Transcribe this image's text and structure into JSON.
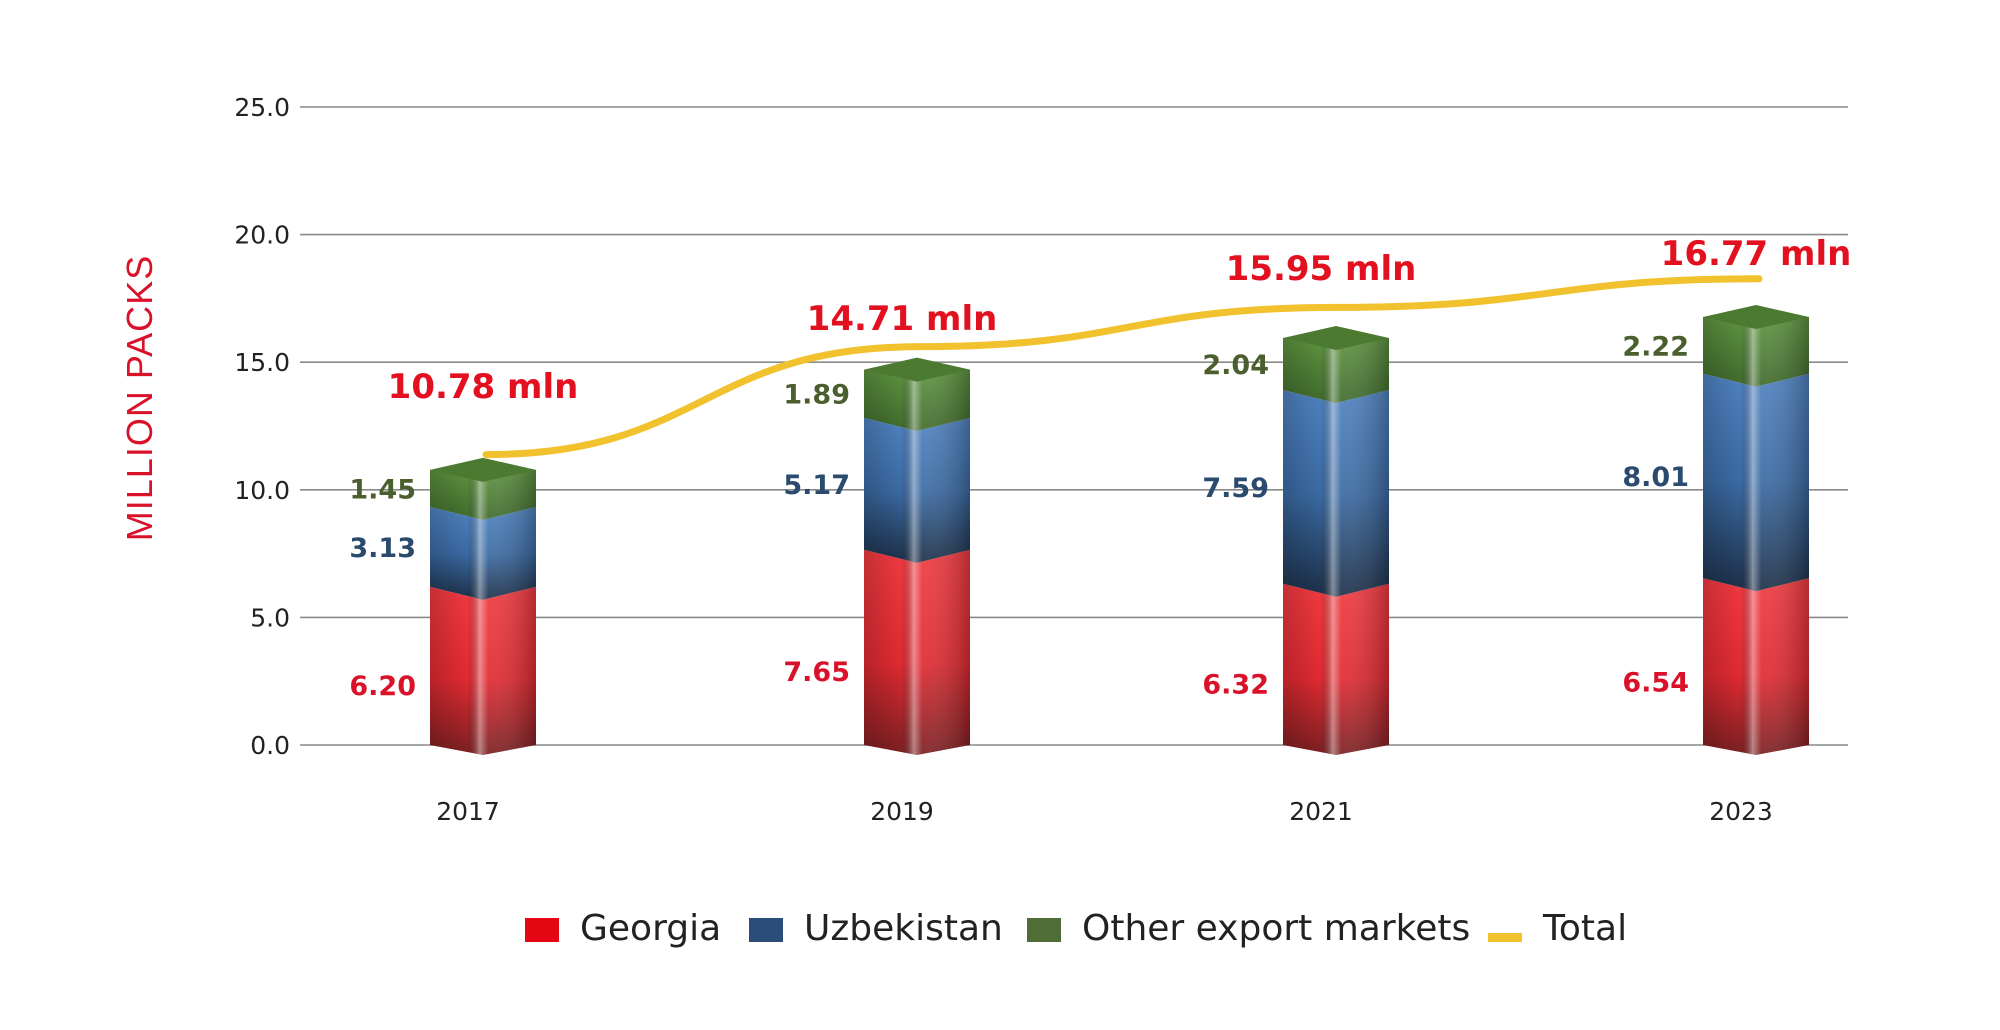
{
  "chart_data": {
    "type": "bar",
    "stacked": true,
    "ylabel": "MILLION PACKS",
    "xlabel": "",
    "ylim": [
      0,
      25
    ],
    "y_ticks": [
      "0.0",
      "5.0",
      "10.0",
      "15.0",
      "20.0",
      "25.0"
    ],
    "grid": true,
    "legend_position": "bottom",
    "categories": [
      "2017",
      "2019",
      "2021",
      "2023"
    ],
    "series": [
      {
        "name": "Georgia",
        "values": [
          6.2,
          7.65,
          6.32,
          6.54
        ],
        "labels": [
          "6.20",
          "7.65",
          "6.32",
          "6.54"
        ],
        "color": "#e52d34",
        "label_color": "#d9122a"
      },
      {
        "name": "Uzbekistan",
        "values": [
          3.13,
          5.17,
          7.59,
          8.01
        ],
        "labels": [
          "3.13",
          "5.17",
          "7.59",
          "8.01"
        ],
        "color": "#3d6ea8",
        "label_color": "#2a4a6e"
      },
      {
        "name": "Other export markets",
        "values": [
          1.45,
          1.89,
          2.04,
          2.22
        ],
        "labels": [
          "1.45",
          "1.89",
          "2.04",
          "2.22"
        ],
        "color": "#5a8a3c",
        "label_color": "#4b5f2e"
      }
    ],
    "total": {
      "name": "Total",
      "color": "#f2c12e",
      "values": [
        10.78,
        14.71,
        15.95,
        16.77
      ],
      "labels": [
        "10.78 mln",
        "14.71 mln",
        "15.95 mln",
        "16.77 mln"
      ]
    }
  },
  "legend": {
    "items": [
      {
        "label": "Georgia",
        "color": "#e30613"
      },
      {
        "label": "Uzbekistan",
        "color": "#2a4e79"
      },
      {
        "label": "Other export markets",
        "color": "#4f6e37"
      },
      {
        "label": "Total",
        "color": "#f2c12e"
      }
    ]
  }
}
